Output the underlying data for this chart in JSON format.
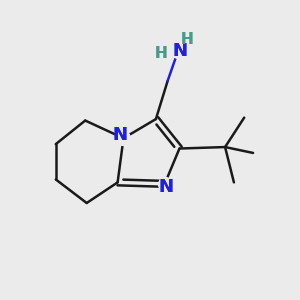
{
  "bg_color": "#ebebeb",
  "bond_color": "#1a1a1a",
  "N_color": "#2020dd",
  "H_color": "#4a9a8a",
  "line_width": 1.8,
  "font_size_N": 13,
  "font_size_H": 11,
  "xlim": [
    0,
    10
  ],
  "ylim": [
    0,
    10
  ]
}
